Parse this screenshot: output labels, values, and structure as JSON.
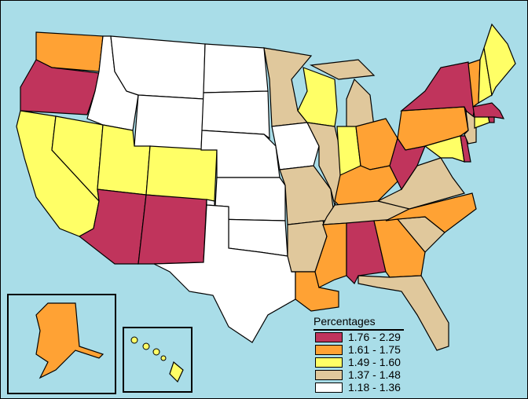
{
  "legend": {
    "title": "Percentages",
    "classes": [
      {
        "label": "1.76 - 2.29",
        "color": "#c0345c"
      },
      {
        "label": "1.61 - 1.75",
        "color": "#ffa234"
      },
      {
        "label": "1.49 - 1.60",
        "color": "#ffff66"
      },
      {
        "label": "1.37 - 1.48",
        "color": "#e0c89c"
      },
      {
        "label": "1.18 - 1.36",
        "color": "#ffffff"
      }
    ]
  },
  "states": {
    "WA": 1,
    "OR": 0,
    "CA": 2,
    "NV": 2,
    "ID": 4,
    "MT": 4,
    "WY": 4,
    "UT": 2,
    "CO": 2,
    "AZ": 0,
    "NM": 0,
    "ND": 4,
    "SD": 4,
    "NE": 4,
    "KS": 4,
    "OK": 4,
    "TX": 4,
    "MN": 3,
    "IA": 4,
    "MO": 3,
    "AR": 3,
    "LA": 1,
    "WI": 2,
    "IL": 3,
    "MI": 3,
    "MI_UP": 3,
    "IN": 2,
    "OH": 1,
    "KY": 1,
    "TN": 3,
    "MS": 1,
    "AL": 0,
    "GA": 1,
    "FL": 3,
    "SC": 3,
    "NC": 1,
    "VA": 3,
    "WV": 0,
    "PA": 1,
    "NY": 0,
    "MD": 2,
    "DE": 0,
    "NJ": 3,
    "CT": 2,
    "RI": 0,
    "MA": 0,
    "VT": 1,
    "NH": 2,
    "ME": 2,
    "AK": 1,
    "HI": 2
  }
}
